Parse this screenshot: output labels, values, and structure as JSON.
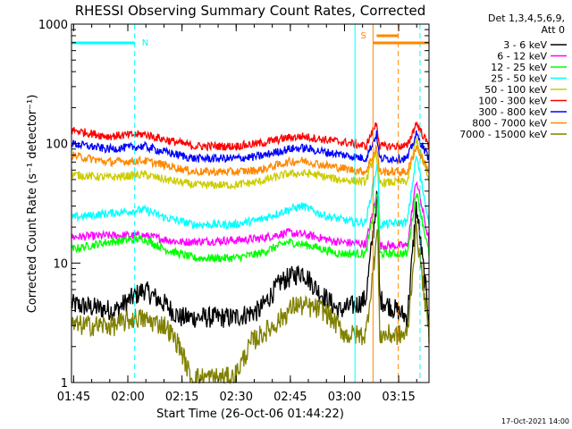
{
  "chart_data": {
    "type": "line",
    "title": "RHESSI Observing Summary Count Rates, Corrected",
    "xlabel": "Start Time (26-Oct-06 01:44:22)",
    "ylabel": "Corrected Count Rate (s⁻¹ detector⁻¹)",
    "y_scale": "log",
    "ylim": [
      1,
      1000
    ],
    "xlim_min": [
      0,
      99
    ],
    "x_ticks": [
      {
        "label": "01:45",
        "min": 0.6
      },
      {
        "label": "02:00",
        "min": 15.6
      },
      {
        "label": "02:15",
        "min": 30.6
      },
      {
        "label": "02:30",
        "min": 45.6
      },
      {
        "label": "02:45",
        "min": 60.6
      },
      {
        "label": "03:00",
        "min": 75.6
      },
      {
        "label": "03:15",
        "min": 90.6
      }
    ],
    "y_ticks": [
      {
        "label": "1",
        "v": 1
      },
      {
        "label": "10",
        "v": 10
      },
      {
        "label": "100",
        "v": 100
      },
      {
        "label": "1000",
        "v": 1000
      }
    ],
    "legend_header": [
      "Det 1,3,4,5,6,9,",
      "Att 0"
    ],
    "series": [
      {
        "name": "3 - 6 keV",
        "color": "#000000",
        "points": [
          [
            0,
            4.5
          ],
          [
            12,
            4.0
          ],
          [
            20,
            6.0
          ],
          [
            26,
            4.5
          ],
          [
            30,
            3.5
          ],
          [
            45,
            3.5
          ],
          [
            52,
            4.0
          ],
          [
            58,
            7.0
          ],
          [
            64,
            8.5
          ],
          [
            68,
            6.0
          ],
          [
            74,
            4.0
          ],
          [
            79,
            4.5
          ],
          [
            81.5,
            5.0
          ],
          [
            84.8,
            40
          ],
          [
            85.3,
            5.0
          ],
          [
            93,
            3.5
          ],
          [
            95.5,
            30
          ],
          [
            99,
            3.5
          ]
        ]
      },
      {
        "name": "6 - 12 keV",
        "color": "#ff00ff",
        "points": [
          [
            0,
            16.5
          ],
          [
            10,
            17
          ],
          [
            20,
            17
          ],
          [
            30,
            15
          ],
          [
            45,
            15.5
          ],
          [
            52,
            16
          ],
          [
            60,
            18
          ],
          [
            66,
            17
          ],
          [
            74,
            15
          ],
          [
            81.5,
            14.5
          ],
          [
            84.8,
            40
          ],
          [
            85.3,
            14
          ],
          [
            93,
            14
          ],
          [
            95.5,
            50
          ],
          [
            99,
            15
          ]
        ]
      },
      {
        "name": "12 - 25 keV",
        "color": "#00ff00",
        "points": [
          [
            0,
            13
          ],
          [
            10,
            15
          ],
          [
            20,
            16
          ],
          [
            26,
            13
          ],
          [
            34,
            11
          ],
          [
            45,
            11
          ],
          [
            52,
            12
          ],
          [
            60,
            15
          ],
          [
            66,
            14
          ],
          [
            74,
            12
          ],
          [
            81.5,
            12
          ],
          [
            84.8,
            40
          ],
          [
            85.3,
            12
          ],
          [
            93,
            12
          ],
          [
            95.5,
            40
          ],
          [
            99,
            12
          ]
        ]
      },
      {
        "name": "25 - 50 keV",
        "color": "#00ffff",
        "points": [
          [
            0,
            24
          ],
          [
            10,
            26
          ],
          [
            20,
            28
          ],
          [
            26,
            24
          ],
          [
            34,
            21
          ],
          [
            45,
            21
          ],
          [
            52,
            23
          ],
          [
            60,
            28
          ],
          [
            64,
            30
          ],
          [
            70,
            25
          ],
          [
            78,
            22
          ],
          [
            81.5,
            22
          ],
          [
            84.8,
            70
          ],
          [
            85.3,
            21
          ],
          [
            93,
            22
          ],
          [
            95.5,
            80
          ],
          [
            99,
            22
          ]
        ]
      },
      {
        "name": "50 - 100 keV",
        "color": "#cccc00",
        "points": [
          [
            0,
            55
          ],
          [
            10,
            52
          ],
          [
            20,
            55
          ],
          [
            26,
            50
          ],
          [
            34,
            45
          ],
          [
            45,
            45
          ],
          [
            52,
            48
          ],
          [
            60,
            56
          ],
          [
            66,
            56
          ],
          [
            74,
            50
          ],
          [
            81.5,
            48
          ],
          [
            84.2,
            85
          ],
          [
            85.3,
            47
          ],
          [
            93,
            48
          ],
          [
            95.5,
            110
          ],
          [
            99,
            48
          ]
        ]
      },
      {
        "name": "100 - 300 keV",
        "color": "#ff0000",
        "points": [
          [
            0,
            130
          ],
          [
            10,
            115
          ],
          [
            20,
            120
          ],
          [
            26,
            108
          ],
          [
            34,
            95
          ],
          [
            45,
            95
          ],
          [
            52,
            100
          ],
          [
            60,
            112
          ],
          [
            64,
            115
          ],
          [
            70,
            108
          ],
          [
            78,
            100
          ],
          [
            81.5,
            95
          ],
          [
            84.5,
            150
          ],
          [
            85.3,
            95
          ],
          [
            93,
            95
          ],
          [
            95.5,
            150
          ],
          [
            99,
            95
          ]
        ]
      },
      {
        "name": "300 - 800 keV",
        "color": "#0000ff",
        "points": [
          [
            0,
            100
          ],
          [
            10,
            90
          ],
          [
            20,
            95
          ],
          [
            26,
            85
          ],
          [
            34,
            75
          ],
          [
            45,
            75
          ],
          [
            52,
            78
          ],
          [
            60,
            90
          ],
          [
            64,
            92
          ],
          [
            70,
            85
          ],
          [
            78,
            78
          ],
          [
            81.5,
            75
          ],
          [
            84.5,
            120
          ],
          [
            85.3,
            75
          ],
          [
            93,
            75
          ],
          [
            95.5,
            120
          ],
          [
            99,
            75
          ]
        ]
      },
      {
        "name": "800 - 7000 keV",
        "color": "#ff8800",
        "points": [
          [
            0,
            80
          ],
          [
            10,
            70
          ],
          [
            20,
            72
          ],
          [
            26,
            66
          ],
          [
            34,
            58
          ],
          [
            45,
            58
          ],
          [
            52,
            60
          ],
          [
            60,
            70
          ],
          [
            64,
            72
          ],
          [
            70,
            66
          ],
          [
            78,
            60
          ],
          [
            81.5,
            58
          ],
          [
            84.5,
            95
          ],
          [
            85.3,
            58
          ],
          [
            93,
            58
          ],
          [
            95.5,
            95
          ],
          [
            99,
            58
          ]
        ]
      },
      {
        "name": "7000 - 15000 keV",
        "color": "#808000",
        "points": [
          [
            0,
            3.0
          ],
          [
            12,
            3.0
          ],
          [
            18,
            3.5
          ],
          [
            26,
            3.0
          ],
          [
            30,
            2.0
          ],
          [
            33,
            1.1
          ],
          [
            45,
            1.1
          ],
          [
            50,
            2.2
          ],
          [
            56,
            3.0
          ],
          [
            62,
            4.5
          ],
          [
            70,
            4.0
          ],
          [
            76,
            2.5
          ],
          [
            81.5,
            2.5
          ],
          [
            84.8,
            20
          ],
          [
            85.3,
            2.5
          ],
          [
            93,
            2.5
          ],
          [
            95.5,
            20
          ],
          [
            99,
            2.5
          ]
        ]
      }
    ],
    "annotations": [
      {
        "label": "N",
        "color": "#00ffff",
        "bar_min": [
          0,
          17.5
        ]
      },
      {
        "label": "S",
        "color": "#ff8800",
        "bar_min": [
          83.5,
          99
        ]
      }
    ],
    "vertical_markers": [
      {
        "min": 17.5,
        "color": "#00ffff",
        "dashed": true
      },
      {
        "min": 78.5,
        "color": "#00ffff",
        "dashed": false
      },
      {
        "min": 83.5,
        "color": "#ff8800",
        "dashed": false
      },
      {
        "min": 90.5,
        "color": "#ff8800",
        "dashed": true
      },
      {
        "min": 96.5,
        "color": "#00ffff",
        "dashed": true
      }
    ],
    "grid": false,
    "legend_placement": "right"
  },
  "footer": {
    "timestamp": "17-Oct-2021 14:00"
  }
}
